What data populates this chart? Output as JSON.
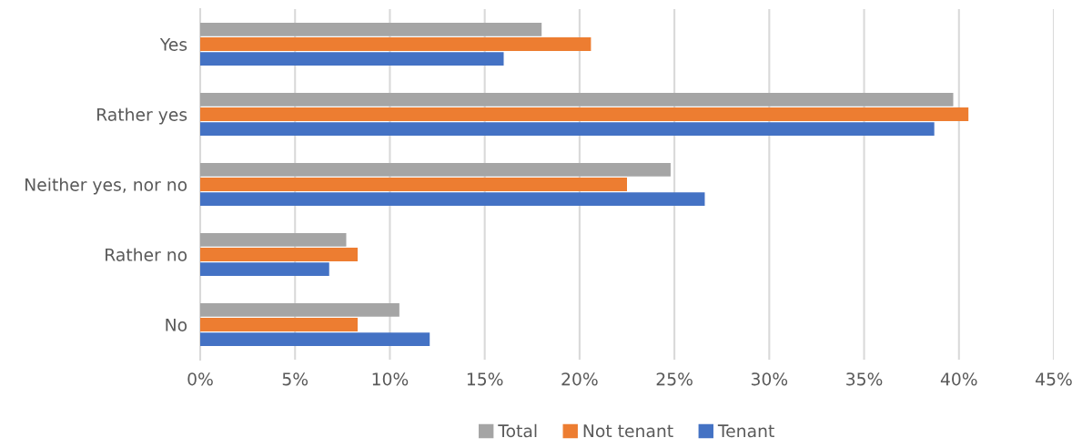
{
  "chart_data": {
    "type": "bar",
    "orientation": "horizontal",
    "categories": [
      "Yes",
      "Rather yes",
      "Neither yes, nor no",
      "Rather no",
      "No"
    ],
    "series": [
      {
        "name": "Total",
        "color": "#a5a5a5",
        "values": [
          18.0,
          39.7,
          24.8,
          7.7,
          10.5
        ]
      },
      {
        "name": "Not tenant",
        "color": "#ed7d31",
        "values": [
          20.6,
          40.5,
          22.5,
          8.3,
          8.3
        ]
      },
      {
        "name": "Tenant",
        "color": "#4472c4",
        "values": [
          16.0,
          38.7,
          26.6,
          6.8,
          12.1
        ]
      }
    ],
    "xlim": [
      0,
      45
    ],
    "xticks": [
      {
        "value": 0,
        "label": "0%"
      },
      {
        "value": 5,
        "label": "5%"
      },
      {
        "value": 10,
        "label": "10%"
      },
      {
        "value": 15,
        "label": "15%"
      },
      {
        "value": 20,
        "label": "20%"
      },
      {
        "value": 25,
        "label": "25%"
      },
      {
        "value": 30,
        "label": "30%"
      },
      {
        "value": 35,
        "label": "35%"
      },
      {
        "value": 40,
        "label": "40%"
      },
      {
        "value": 45,
        "label": "45%"
      }
    ],
    "grid": "x",
    "legend": "bottom"
  }
}
